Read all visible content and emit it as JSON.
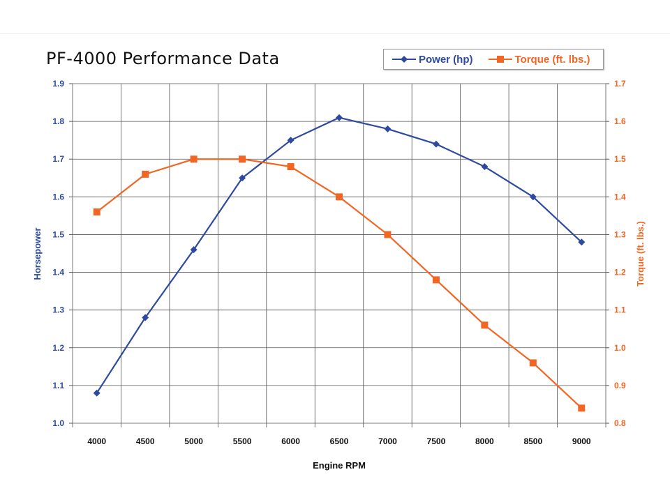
{
  "chart_data": {
    "type": "line",
    "title": "PF-4000 Performance Data",
    "xlabel": "Engine RPM",
    "ylabel": "Horsepower",
    "y2label": "Torque (ft. lbs.)",
    "categories": [
      "4000",
      "4500",
      "5000",
      "5500",
      "6000",
      "6500",
      "7000",
      "7500",
      "8000",
      "8500",
      "9000"
    ],
    "ylim": [
      1.0,
      1.9
    ],
    "y2lim": [
      0.8,
      1.7
    ],
    "yticks": [
      "1.0",
      "1.1",
      "1.2",
      "1.3",
      "1.4",
      "1.5",
      "1.6",
      "1.7",
      "1.8",
      "1.9"
    ],
    "y2ticks": [
      "0.8",
      "0.9",
      "1.0",
      "1.1",
      "1.2",
      "1.3",
      "1.4",
      "1.5",
      "1.6",
      "1.7"
    ],
    "grid": true,
    "legend": "top-right",
    "series": [
      {
        "name": "Power (hp)",
        "axis": "left",
        "color": "#2e4a9e",
        "marker": "diamond",
        "values": [
          1.08,
          1.28,
          1.46,
          1.65,
          1.75,
          1.81,
          1.78,
          1.74,
          1.68,
          1.6,
          1.48
        ]
      },
      {
        "name": "Torque (ft. lbs.)",
        "axis": "right",
        "color": "#f26522",
        "marker": "square",
        "values": [
          1.36,
          1.46,
          1.5,
          1.5,
          1.48,
          1.4,
          1.3,
          1.18,
          1.06,
          0.96,
          0.84
        ]
      }
    ]
  }
}
